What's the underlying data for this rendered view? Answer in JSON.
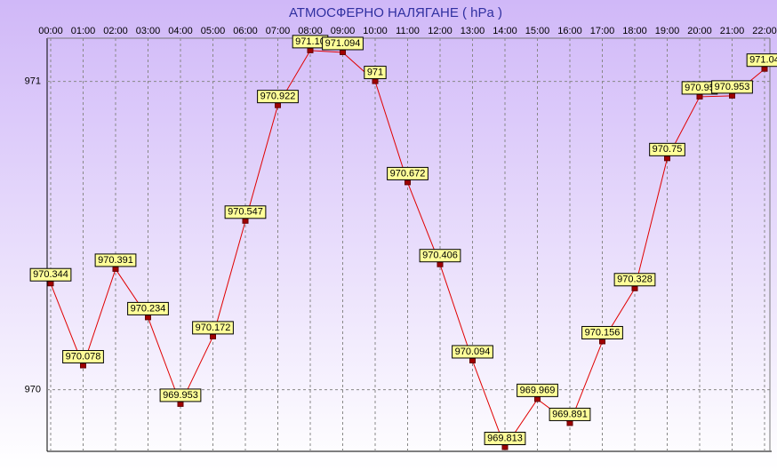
{
  "chart_data": {
    "type": "line",
    "title": "АТМОСФЕРНО НАЛЯГАНЕ  ( hPa )",
    "categories": [
      "00:00",
      "01:00",
      "02:00",
      "03:00",
      "04:00",
      "05:00",
      "06:00",
      "07:00",
      "08:00",
      "09:00",
      "10:00",
      "11:00",
      "12:00",
      "13:00",
      "14:00",
      "15:00",
      "16:00",
      "17:00",
      "18:00",
      "19:00",
      "20:00",
      "21:00",
      "22:00"
    ],
    "series": [
      {
        "color": "#e00000",
        "values": [
          970.344,
          970.078,
          970.391,
          970.234,
          969.953,
          970.172,
          970.547,
          970.922,
          971.1,
          971.094,
          971,
          970.672,
          970.406,
          970.094,
          969.813,
          969.969,
          969.891,
          970.156,
          970.328,
          970.75,
          970.95,
          970.953,
          971.04
        ],
        "value_labels": [
          "970.344",
          "970.078",
          "970.391",
          "970.234",
          "969.953",
          "970.172",
          "970.547",
          "970.922",
          "971.10",
          "971.094",
          "971",
          "970.672",
          "970.406",
          "970.094",
          "969.813",
          "969.969",
          "969.891",
          "970.156",
          "970.328",
          "970.75",
          "970.95",
          "970.953",
          "971.04"
        ]
      }
    ],
    "ylim": [
      969.8,
      971.14
    ],
    "yticks": [
      970,
      971
    ],
    "grid": true
  }
}
